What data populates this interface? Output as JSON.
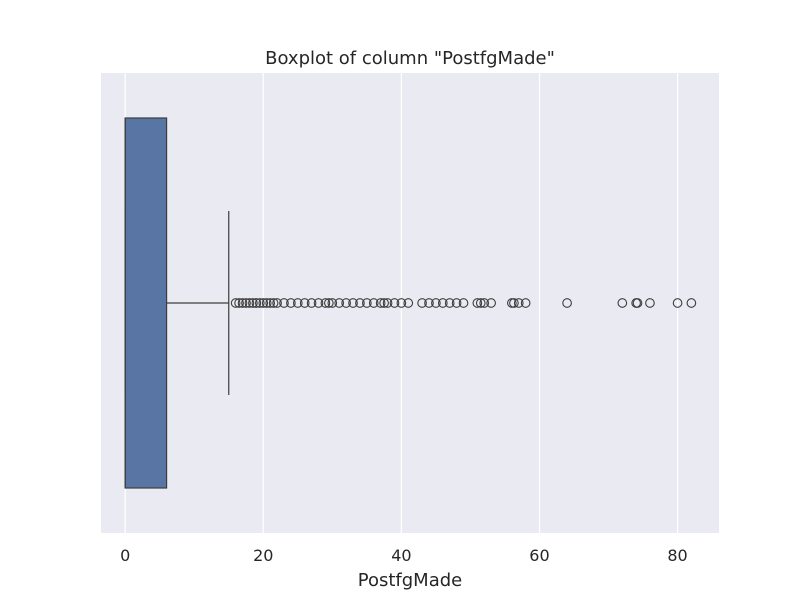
{
  "chart_data": {
    "type": "boxplot",
    "title": "Boxplot of column \"PostfgMade\"",
    "xlabel": "PostfgMade",
    "ylabel": "",
    "orientation": "horizontal",
    "xlim": [
      -3.5,
      86
    ],
    "xticks": [
      0,
      20,
      40,
      60,
      80
    ],
    "grid": true,
    "colors": {
      "plot_background": "#EAEAF2",
      "grid": "#FFFFFF",
      "box_fill": "#5975A4",
      "line": "#3D3D3D"
    },
    "box": {
      "min": 0,
      "q1": 0,
      "median": 0,
      "q3": 6,
      "whisker_low": 0,
      "whisker_high": 15
    },
    "outliers": [
      16,
      16.5,
      17,
      17.5,
      18,
      18.5,
      19,
      19.5,
      20,
      20.5,
      21,
      21.5,
      22,
      23,
      24,
      25,
      26,
      27,
      28,
      29,
      29.5,
      30,
      31,
      32,
      33,
      34,
      35,
      36,
      37,
      37.5,
      38,
      39,
      40,
      41,
      43,
      44,
      45,
      46,
      47,
      48,
      49,
      51,
      51.5,
      52,
      53,
      56,
      56.3,
      57,
      58,
      64,
      72,
      74,
      74.2,
      76,
      80,
      82
    ]
  }
}
